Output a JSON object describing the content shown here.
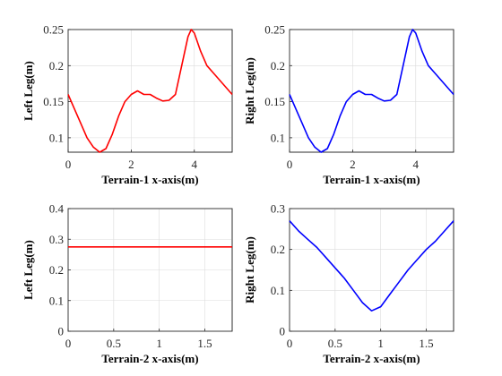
{
  "chart_data": [
    {
      "type": "line",
      "xlabel": "Terrain-1 x-axis(m)",
      "ylabel": "Left Leg(m)",
      "xlim": [
        0,
        5.2
      ],
      "ylim": [
        0.08,
        0.25
      ],
      "xticks": [
        0,
        2,
        4
      ],
      "xtick_labels": [
        "0",
        "2",
        "4"
      ],
      "yticks": [
        0.1,
        0.15,
        0.2,
        0.25
      ],
      "ytick_labels": [
        "0.1",
        "0.15",
        "0.2",
        "0.25"
      ],
      "grid": true,
      "series": [
        {
          "color": "#ff0000",
          "x": [
            0,
            0.2,
            0.4,
            0.6,
            0.8,
            1.0,
            1.2,
            1.4,
            1.6,
            1.8,
            2.0,
            2.2,
            2.4,
            2.6,
            2.8,
            3.0,
            3.2,
            3.4,
            3.6,
            3.8,
            3.9,
            4.0,
            4.2,
            4.4,
            4.6,
            4.8,
            5.0,
            5.2
          ],
          "y": [
            0.16,
            0.14,
            0.12,
            0.1,
            0.087,
            0.08,
            0.085,
            0.105,
            0.13,
            0.15,
            0.16,
            0.165,
            0.16,
            0.16,
            0.155,
            0.151,
            0.152,
            0.16,
            0.2,
            0.24,
            0.25,
            0.245,
            0.22,
            0.2,
            0.19,
            0.18,
            0.17,
            0.16
          ]
        }
      ]
    },
    {
      "type": "line",
      "xlabel": "Terrain-1 x-axis(m)",
      "ylabel": "Right Leg(m)",
      "xlim": [
        0,
        5.2
      ],
      "ylim": [
        0.08,
        0.25
      ],
      "xticks": [
        0,
        2,
        4
      ],
      "xtick_labels": [
        "0",
        "2",
        "4"
      ],
      "yticks": [
        0.1,
        0.15,
        0.2,
        0.25
      ],
      "ytick_labels": [
        "0.1",
        "0.15",
        "0.2",
        "0.25"
      ],
      "grid": true,
      "series": [
        {
          "color": "#0000ff",
          "x": [
            0,
            0.2,
            0.4,
            0.6,
            0.8,
            1.0,
            1.2,
            1.4,
            1.6,
            1.8,
            2.0,
            2.2,
            2.4,
            2.6,
            2.8,
            3.0,
            3.2,
            3.4,
            3.6,
            3.8,
            3.9,
            4.0,
            4.2,
            4.4,
            4.6,
            4.8,
            5.0,
            5.2
          ],
          "y": [
            0.16,
            0.14,
            0.12,
            0.1,
            0.087,
            0.08,
            0.085,
            0.105,
            0.13,
            0.15,
            0.16,
            0.165,
            0.16,
            0.16,
            0.155,
            0.151,
            0.152,
            0.16,
            0.2,
            0.24,
            0.25,
            0.245,
            0.22,
            0.2,
            0.19,
            0.18,
            0.17,
            0.16
          ]
        }
      ]
    },
    {
      "type": "line",
      "xlabel": "Terrain-2 x-axis(m)",
      "ylabel": "Left Leg(m)",
      "xlim": [
        0,
        1.8
      ],
      "ylim": [
        0,
        0.4
      ],
      "xticks": [
        0,
        0.5,
        1,
        1.5
      ],
      "xtick_labels": [
        "0",
        "0.5",
        "1",
        "1.5"
      ],
      "yticks": [
        0,
        0.1,
        0.2,
        0.3,
        0.4
      ],
      "ytick_labels": [
        "0",
        "0.1",
        "0.2",
        "0.3",
        "0.4"
      ],
      "grid": true,
      "series": [
        {
          "color": "#ff0000",
          "x": [
            0,
            0.2,
            0.4,
            0.6,
            0.8,
            1.0,
            1.2,
            1.4,
            1.6,
            1.8
          ],
          "y": [
            0.275,
            0.275,
            0.275,
            0.275,
            0.275,
            0.275,
            0.275,
            0.275,
            0.275,
            0.275
          ]
        }
      ]
    },
    {
      "type": "line",
      "xlabel": "Terrain-2 x-axis(m)",
      "ylabel": "Right Leg(m)",
      "xlim": [
        0,
        1.8
      ],
      "ylim": [
        0,
        0.3
      ],
      "xticks": [
        0,
        0.5,
        1,
        1.5
      ],
      "xtick_labels": [
        "0",
        "0.5",
        "1",
        "1.5"
      ],
      "yticks": [
        0,
        0.1,
        0.2,
        0.3
      ],
      "ytick_labels": [
        "0",
        "0.1",
        "0.2",
        "0.3"
      ],
      "grid": true,
      "series": [
        {
          "color": "#0000ff",
          "x": [
            0,
            0.1,
            0.2,
            0.3,
            0.4,
            0.5,
            0.6,
            0.7,
            0.8,
            0.9,
            1.0,
            1.1,
            1.2,
            1.3,
            1.4,
            1.5,
            1.6,
            1.7,
            1.8
          ],
          "y": [
            0.27,
            0.245,
            0.225,
            0.205,
            0.18,
            0.155,
            0.13,
            0.1,
            0.07,
            0.05,
            0.06,
            0.09,
            0.12,
            0.15,
            0.175,
            0.2,
            0.22,
            0.245,
            0.27
          ]
        }
      ]
    }
  ]
}
